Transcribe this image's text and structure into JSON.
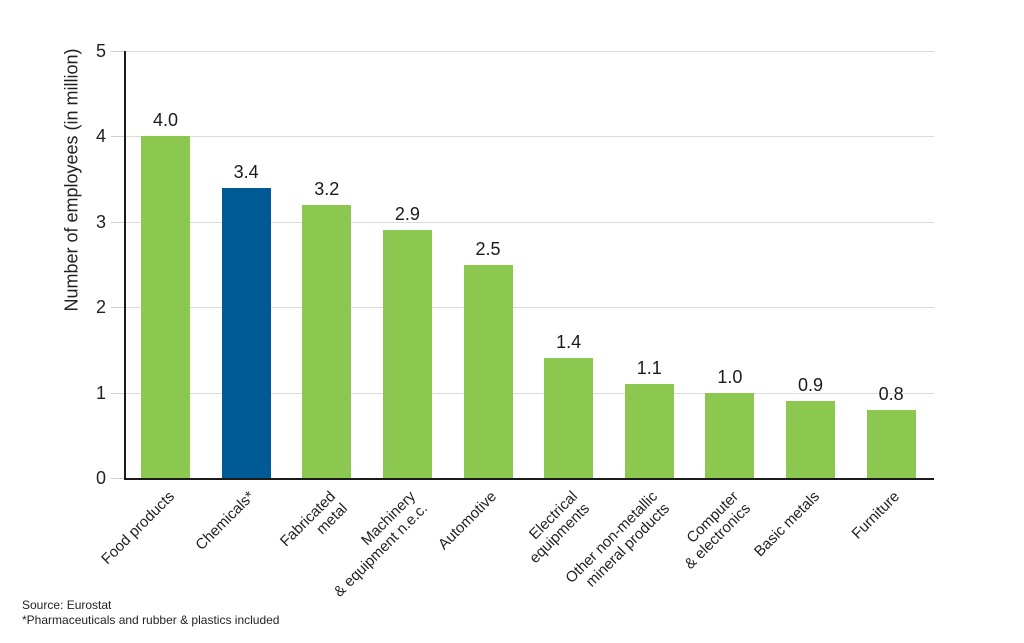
{
  "chart_data": {
    "type": "bar",
    "title": "",
    "ylabel": "Number of employees (in million)",
    "xlabel": "",
    "ylim": [
      0,
      5
    ],
    "yticks": [
      0,
      1,
      2,
      3,
      4,
      5
    ],
    "grid": true,
    "legend": false,
    "categories": [
      "Food products",
      "Chemicals*",
      "Fabricated\nmetal",
      "Machinery\n& equipment n.e.c.",
      "Automotive",
      "Electrical\nequipments",
      "Other non-metallic\nmineral products",
      "Computer\n& electronics",
      "Basic metals",
      "Furniture"
    ],
    "values": [
      4.0,
      3.4,
      3.2,
      2.9,
      2.5,
      1.4,
      1.1,
      1.0,
      0.9,
      0.8
    ],
    "value_labels": [
      "4.0",
      "3.4",
      "3.2",
      "2.9",
      "2.5",
      "1.4",
      "1.1",
      "1.0",
      "0.9",
      "0.8"
    ],
    "highlight_index": 1,
    "highlighted_category": "Chemicals*",
    "colors": {
      "bar_default": "#8CC74F",
      "bar_highlight": "#005A96",
      "gridline": "#DCDCDC",
      "axis": "#1A1A1A",
      "text": "#231F20"
    }
  },
  "footer": {
    "source": "Source: Eurostat",
    "note": "*Pharmaceuticals and rubber & plastics included"
  }
}
